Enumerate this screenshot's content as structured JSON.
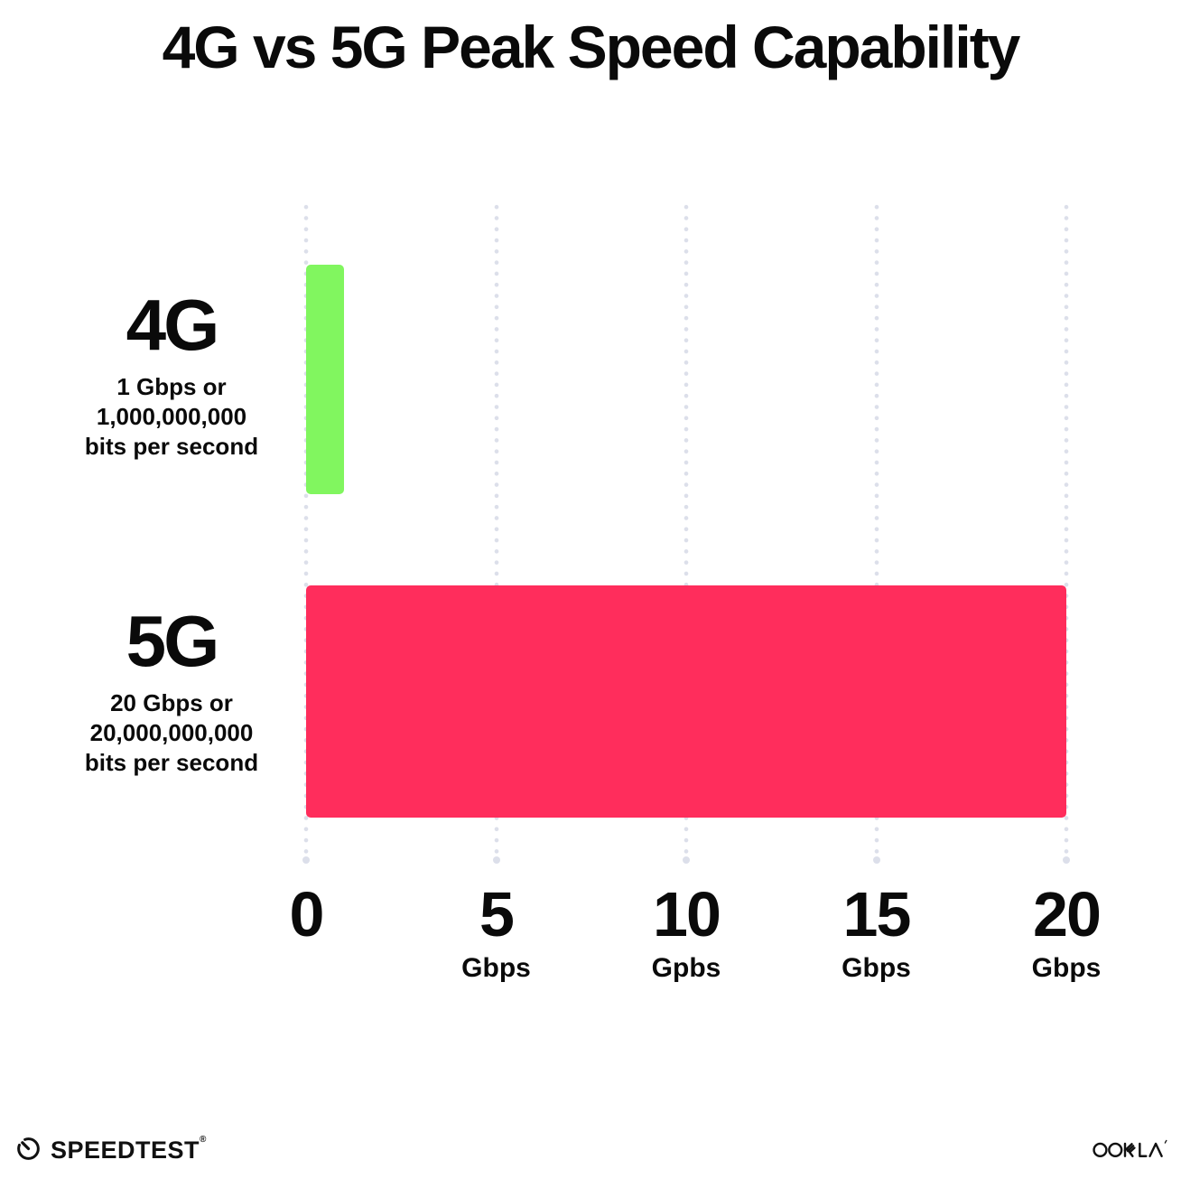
{
  "chart_data": {
    "type": "bar",
    "orientation": "horizontal",
    "title": "4G vs 5G Peak Speed Capability",
    "xlabel": "",
    "ylabel": "",
    "xlim": [
      0,
      20
    ],
    "grid": "vertical dotted gridlines at each x tick, terminating in a larger dot at the axis",
    "legend_position": "none",
    "categories": [
      "4G",
      "5G"
    ],
    "series": [
      {
        "name": "4G",
        "value": 1,
        "color": "#81F65F",
        "sublabel_lines": [
          "1 Gbps or",
          "1,000,000,000",
          "bits per second"
        ]
      },
      {
        "name": "5G",
        "value": 20,
        "color": "#FF2D5C",
        "sublabel_lines": [
          "20 Gbps or",
          "20,000,000,000",
          "bits per second"
        ]
      }
    ],
    "x_ticks": [
      {
        "value": 0,
        "label": "0",
        "unit": ""
      },
      {
        "value": 5,
        "label": "5",
        "unit": "Gbps"
      },
      {
        "value": 10,
        "label": "10",
        "unit": "Gpbs"
      },
      {
        "value": 15,
        "label": "15",
        "unit": "Gbps"
      },
      {
        "value": 20,
        "label": "20",
        "unit": "Gbps"
      }
    ]
  },
  "footer": {
    "speedtest_label": "SPEEDTEST",
    "speedtest_trademark": "®",
    "ookla_label": "OOKLA"
  },
  "colors": {
    "background": "#FFFFFF",
    "text": "#0A0A0A",
    "grid_dots": "#DCDFEA",
    "bar_4g": "#81F65F",
    "bar_5g": "#FF2D5C"
  }
}
